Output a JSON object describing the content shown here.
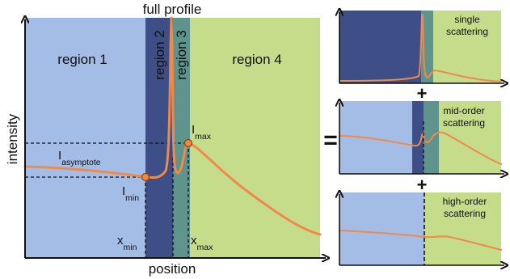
{
  "main_plot": {
    "title": "full profile",
    "x_axis_label": "position",
    "y_axis_label": "intensity",
    "regions": [
      {
        "label": "region 1",
        "color": "#a4bde6"
      },
      {
        "label": "region 2",
        "color": "#3d4f86"
      },
      {
        "label": "region 3",
        "color": "#5f938e"
      },
      {
        "label": "region 4",
        "color": "#c5dc8b"
      }
    ],
    "markers": {
      "i_asymptote": {
        "main": "I",
        "sub": "asymptote"
      },
      "i_min": {
        "main": "I",
        "sub": "min"
      },
      "i_max": {
        "main": "I",
        "sub": "max"
      },
      "x_min": {
        "main": "x",
        "sub": "min"
      },
      "x_max": {
        "main": "x",
        "sub": "max"
      }
    }
  },
  "operators": {
    "equals": "=",
    "plus_1": "+",
    "plus_2": "+"
  },
  "component_plots": [
    {
      "label_line1": "single",
      "label_line2": "scattering"
    },
    {
      "label_line1": "mid-order",
      "label_line2": "scattering"
    },
    {
      "label_line1": "high-order",
      "label_line2": "scattering"
    }
  ],
  "colors": {
    "curve": "#f08a4b",
    "marker_fill": "#f0883f",
    "marker_stroke": "#8a4a1a"
  }
}
